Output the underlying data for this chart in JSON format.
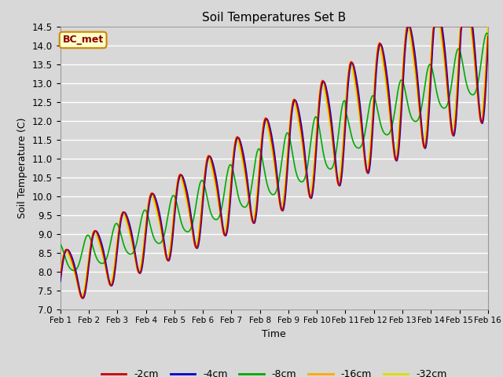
{
  "title": "Soil Temperatures Set B",
  "xlabel": "Time",
  "ylabel": "Soil Temperature (C)",
  "ylim": [
    7.0,
    14.5
  ],
  "fig_facecolor": "#d8d8d8",
  "plot_bg": "#d8d8d8",
  "series_colors": {
    "-2cm": "#cc0000",
    "-4cm": "#0000cc",
    "-8cm": "#00aa00",
    "-16cm": "#ffaa00",
    "-32cm": "#dddd00"
  },
  "annotation_text": "BC_met",
  "annotation_bg": "#ffffcc",
  "annotation_border": "#cc6600",
  "x_ticks": [
    "Feb 1",
    "Feb 2",
    "Feb 3",
    "Feb 4",
    "Feb 5",
    "Feb 6",
    "Feb 7",
    "Feb 8",
    "Feb 9",
    "Feb 10",
    "Feb 11",
    "Feb 12",
    "Feb 13",
    "Feb 14",
    "Feb 15",
    "Feb 16"
  ],
  "n_points": 720,
  "line_width": 1.2
}
